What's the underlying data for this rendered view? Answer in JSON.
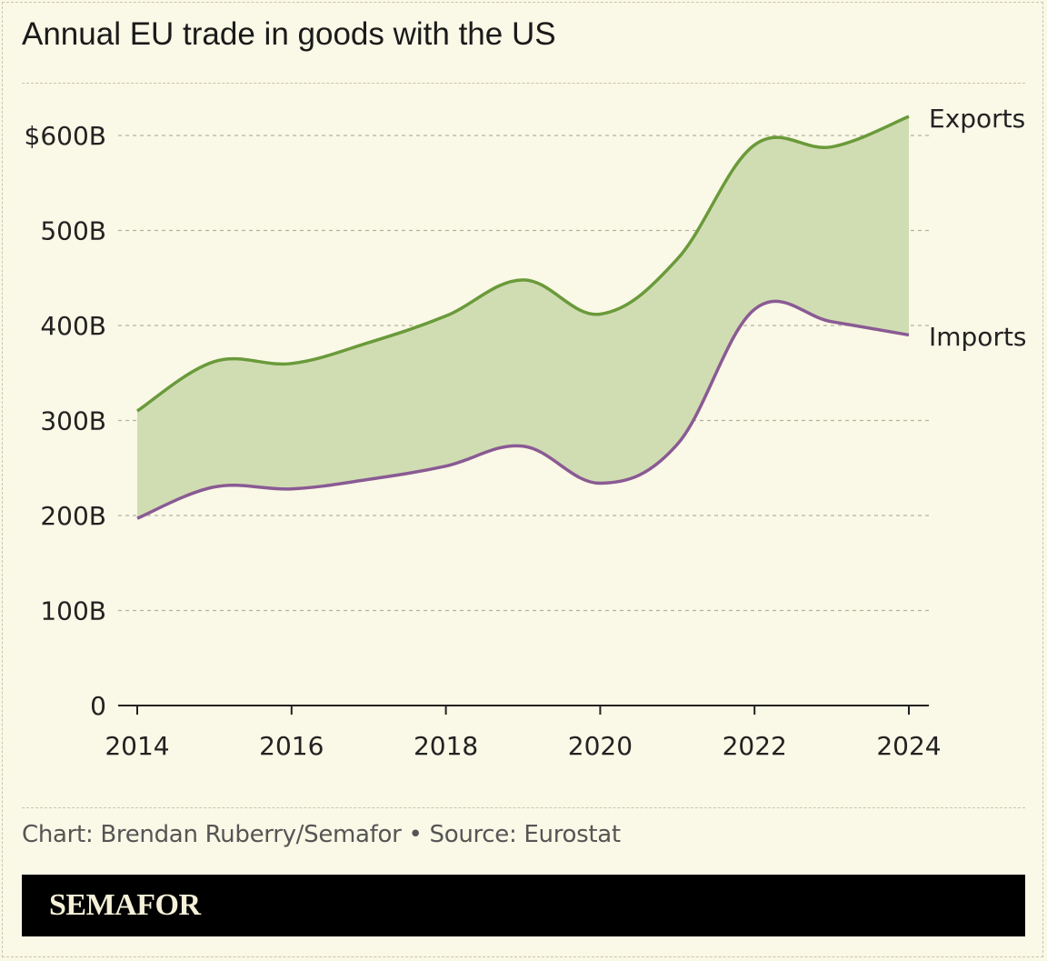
{
  "title": "Annual EU trade in goods with the US",
  "source": "Chart: Brendan Ruberry/Semafor • Source: Eurostat",
  "brand": "SEMAFOR",
  "colors": {
    "background": "#faf8e6",
    "exports": "#6a9a3a",
    "imports": "#8a5a94",
    "gap_fill": "#d0ddb2",
    "grid": "#b5b39f",
    "axis": "#222222"
  },
  "chart_data": {
    "type": "line",
    "title": "Annual EU trade in goods with the US",
    "x": [
      2014,
      2015,
      2016,
      2017,
      2018,
      2019,
      2020,
      2021,
      2022,
      2023,
      2024
    ],
    "x_ticks": [
      "2014",
      "2016",
      "2018",
      "2020",
      "2022",
      "2024"
    ],
    "y_ticks": [
      {
        "value": 0,
        "label": "0"
      },
      {
        "value": 100,
        "label": "100B"
      },
      {
        "value": 200,
        "label": "200B"
      },
      {
        "value": 300,
        "label": "300B"
      },
      {
        "value": 400,
        "label": "400B"
      },
      {
        "value": 500,
        "label": "500B"
      },
      {
        "value": 600,
        "label": "$600B"
      }
    ],
    "ylim": [
      0,
      650
    ],
    "xlim": [
      2014,
      2024
    ],
    "grid": true,
    "fill_between_series": true,
    "series": [
      {
        "name": "Exports",
        "values": [
          310,
          362,
          360,
          382,
          410,
          448,
          412,
          470,
          590,
          588,
          620
        ]
      },
      {
        "name": "Imports",
        "values": [
          197,
          230,
          228,
          238,
          252,
          273,
          234,
          275,
          417,
          404,
          390
        ]
      }
    ]
  }
}
